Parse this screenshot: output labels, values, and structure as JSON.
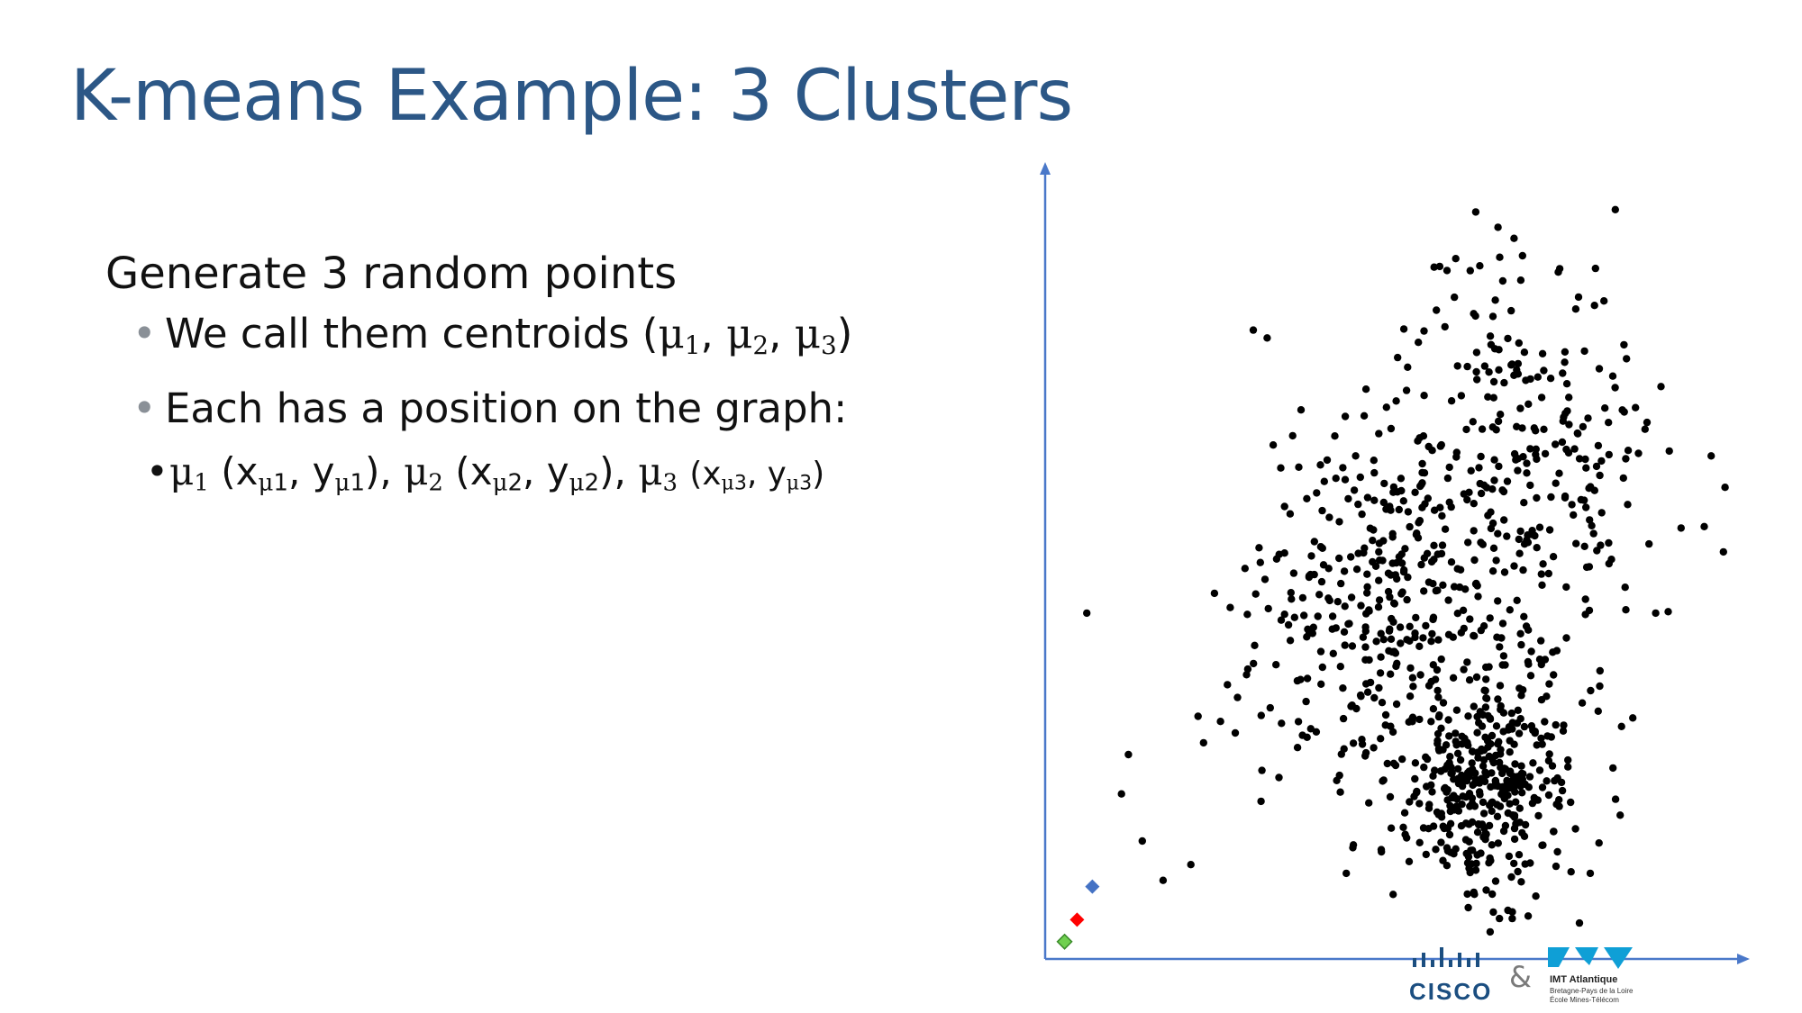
{
  "slide": {
    "title": "K-means Example: 3 Clusters"
  },
  "content": {
    "heading": "Generate 3 random points",
    "bullet1": {
      "prefix": "We call them centroids (",
      "mu": "μ",
      "s1": "1",
      "s2": "2",
      "s3": "3",
      "suffix": ")"
    },
    "bullet2": "Each has a position on the graph:",
    "bullet3": {
      "mu": "μ",
      "x": "x",
      "y": "y",
      "n1": "1",
      "n2": "2",
      "n3": "3"
    }
  },
  "colors": {
    "title": "#2c5786",
    "axis": "#4a78c9",
    "points": "#000000",
    "centroid_1": "#4472c4",
    "centroid_2": "#ff0000",
    "centroid_3": "#70d050"
  },
  "logos": {
    "cisco": "CISCO",
    "ampersand": "&",
    "imt_name": "IMT Atlantique",
    "imt_line1": "Bretagne-Pays de la Loire",
    "imt_line2": "École Mines-Télécom"
  },
  "chart_data": {
    "type": "scatter",
    "title": "",
    "xlabel": "",
    "ylabel": "",
    "axes": "arrows-only, no ticks",
    "grid": false,
    "xlim": [
      0,
      100
    ],
    "ylim": [
      0,
      100
    ],
    "clusters": [
      {
        "cx": 63,
        "cy": 22,
        "sx": 7,
        "sy": 7,
        "n": 380
      },
      {
        "cx": 48,
        "cy": 43,
        "sx": 10,
        "sy": 11,
        "n": 330
      },
      {
        "cx": 68,
        "cy": 62,
        "sx": 10,
        "sy": 14,
        "n": 300
      }
    ],
    "outliers": [
      [
        6,
        44
      ],
      [
        30,
        80
      ],
      [
        32,
        79
      ],
      [
        11,
        21
      ],
      [
        14,
        15
      ],
      [
        21,
        12
      ],
      [
        17,
        10
      ],
      [
        12,
        26
      ],
      [
        82,
        100
      ],
      [
        95,
        55
      ],
      [
        88,
        44
      ],
      [
        98,
        60
      ],
      [
        96,
        64
      ]
    ],
    "centroids": [
      {
        "name": "μ1",
        "x": 6.8,
        "y": 9.2,
        "color": "#4472c4"
      },
      {
        "name": "μ2",
        "x": 4.6,
        "y": 5.0,
        "color": "#ff0000"
      },
      {
        "name": "μ3",
        "x": 2.8,
        "y": 2.2,
        "color": "#70d050"
      }
    ]
  }
}
